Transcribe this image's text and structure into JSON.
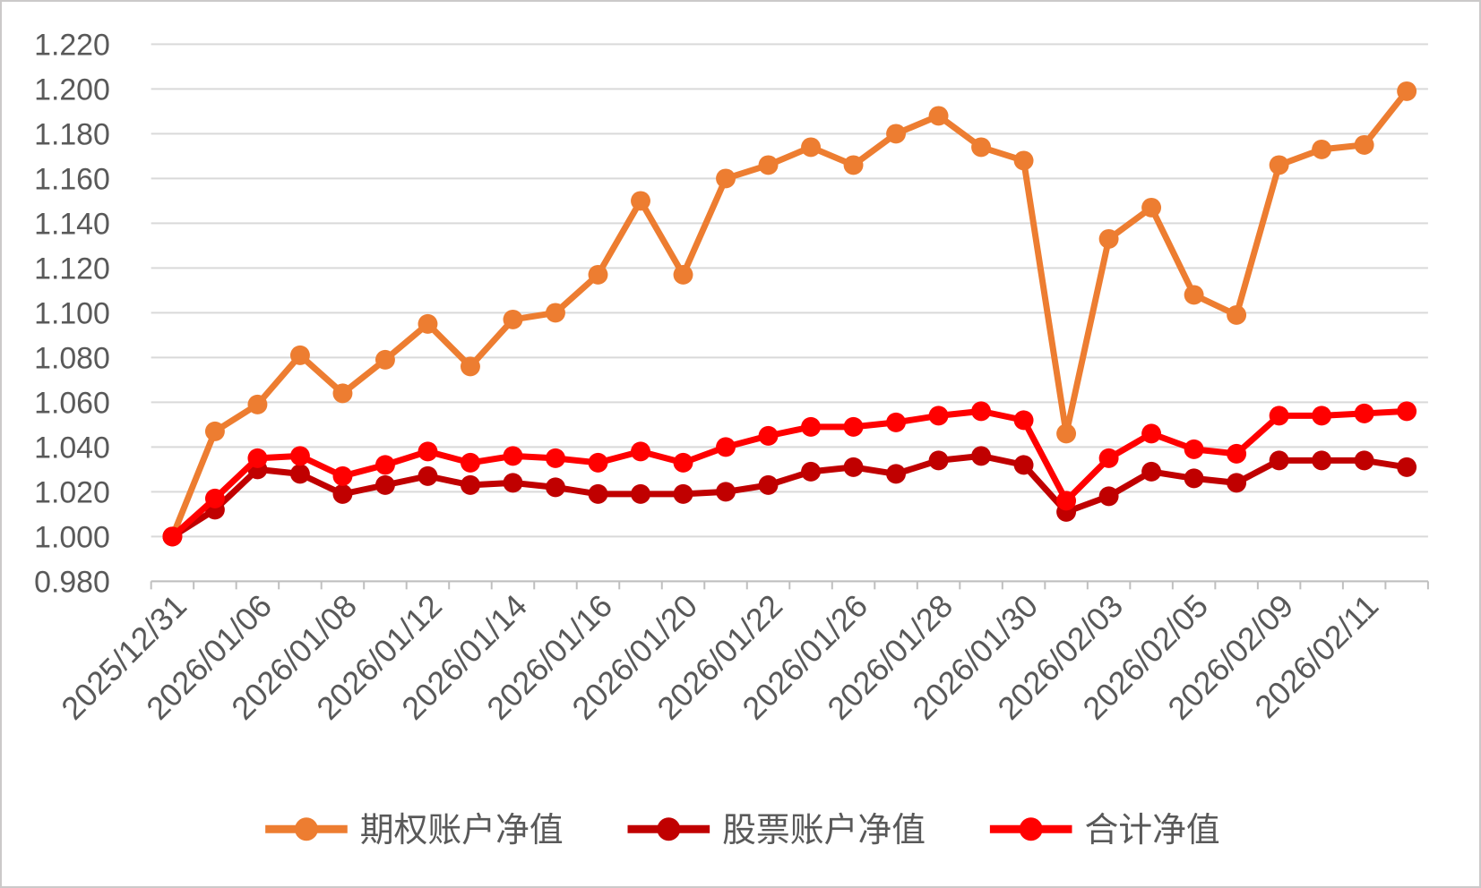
{
  "chart_data": {
    "type": "line",
    "title": "",
    "categories": [
      "2025/12/31",
      "",
      "2026/01/06",
      "",
      "2026/01/08",
      "",
      "2026/01/12",
      "",
      "2026/01/14",
      "",
      "2026/01/16",
      "",
      "2026/01/20",
      "",
      "2026/01/22",
      "",
      "2026/01/26",
      "",
      "2026/01/28",
      "",
      "2026/01/30",
      "",
      "2026/02/03",
      "",
      "2026/02/05",
      "",
      "2026/02/09",
      "",
      "2026/02/11",
      ""
    ],
    "x_tick_labels": [
      "2025/12/31",
      "2026/01/06",
      "2026/01/08",
      "2026/01/12",
      "2026/01/14",
      "2026/01/16",
      "2026/01/20",
      "2026/01/22",
      "2026/01/26",
      "2026/01/28",
      "2026/01/30",
      "2026/02/03",
      "2026/02/05",
      "2026/02/09",
      "2026/02/11"
    ],
    "series": [
      {
        "name": "期权账户净值",
        "color": "#ED7D31",
        "values": [
          1.0,
          1.047,
          1.059,
          1.081,
          1.064,
          1.079,
          1.095,
          1.076,
          1.097,
          1.1,
          1.117,
          1.15,
          1.117,
          1.16,
          1.166,
          1.174,
          1.166,
          1.18,
          1.188,
          1.174,
          1.168,
          1.046,
          1.133,
          1.147,
          1.108,
          1.099,
          1.166,
          1.173,
          1.175,
          1.199
        ]
      },
      {
        "name": "股票账户净值",
        "color": "#C00000",
        "values": [
          1.0,
          1.012,
          1.03,
          1.028,
          1.019,
          1.023,
          1.027,
          1.023,
          1.024,
          1.022,
          1.019,
          1.019,
          1.019,
          1.02,
          1.023,
          1.029,
          1.031,
          1.028,
          1.034,
          1.036,
          1.032,
          1.011,
          1.018,
          1.029,
          1.026,
          1.024,
          1.034,
          1.034,
          1.034,
          1.031
        ]
      },
      {
        "name": "合计净值",
        "color": "#FF0000",
        "values": [
          1.0,
          1.017,
          1.035,
          1.036,
          1.027,
          1.032,
          1.038,
          1.033,
          1.036,
          1.035,
          1.033,
          1.038,
          1.033,
          1.04,
          1.045,
          1.049,
          1.049,
          1.051,
          1.054,
          1.056,
          1.052,
          1.016,
          1.035,
          1.046,
          1.039,
          1.037,
          1.054,
          1.054,
          1.055,
          1.056
        ]
      }
    ],
    "y_axis": {
      "min": 0.98,
      "max": 1.22,
      "step": 0.02,
      "decimals": 3,
      "tick_labels": [
        "0.980",
        "1.000",
        "1.020",
        "1.040",
        "1.060",
        "1.080",
        "1.100",
        "1.120",
        "1.140",
        "1.160",
        "1.180",
        "1.200",
        "1.220"
      ]
    },
    "grid": true,
    "legend": {
      "position": "bottom",
      "entries": [
        "期权账户净值",
        "股票账户净值",
        "合计净值"
      ]
    },
    "colors": {
      "gridline": "#D9D9D9",
      "axis": "#BFBFBF",
      "label": "#595959",
      "background": "#FFFFFF",
      "frame": "#CBC9C9"
    }
  }
}
